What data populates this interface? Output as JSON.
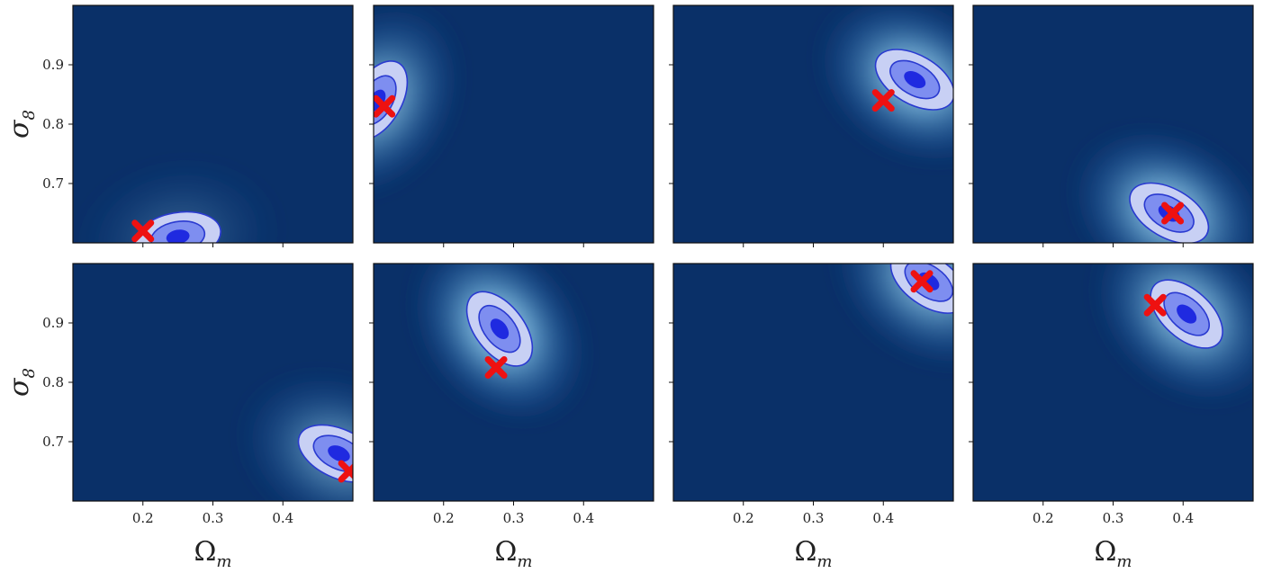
{
  "colors": {
    "background": "#0a3068",
    "contour_outer": "#c8d0f4",
    "contour_mid": "#7e8ef0",
    "contour_inner": "#1f2ae0",
    "contour_line": "#2a3ad0",
    "glow": "#bfe3f6",
    "marker": "#ee1111"
  },
  "chart_data": [
    {
      "type": "heatmap",
      "panel": "row1-col1",
      "xlim": [
        0.1,
        0.5
      ],
      "ylim": [
        0.6,
        1.0
      ],
      "xticks": [],
      "yticks": [
        0.7,
        0.8,
        0.9
      ],
      "xlabel": "",
      "ylabel": "σ8",
      "posterior_peak": {
        "x": 0.25,
        "y": 0.61
      },
      "orientation_deg": -10,
      "glow_strength": 0.25,
      "true_value": {
        "x": 0.2,
        "y": 0.62
      }
    },
    {
      "type": "heatmap",
      "panel": "row1-col2",
      "xlim": [
        0.1,
        0.5
      ],
      "ylim": [
        0.6,
        1.0
      ],
      "xticks": [],
      "yticks": [],
      "xlabel": "",
      "ylabel": "",
      "posterior_peak": {
        "x": 0.105,
        "y": 0.84
      },
      "orientation_deg": -60,
      "glow_strength": 0.8,
      "true_value": {
        "x": 0.115,
        "y": 0.83
      }
    },
    {
      "type": "heatmap",
      "panel": "row1-col3",
      "xlim": [
        0.1,
        0.5
      ],
      "ylim": [
        0.6,
        1.0
      ],
      "xticks": [],
      "yticks": [],
      "xlabel": "",
      "ylabel": "",
      "posterior_peak": {
        "x": 0.445,
        "y": 0.875
      },
      "orientation_deg": 30,
      "glow_strength": 0.95,
      "true_value": {
        "x": 0.4,
        "y": 0.84
      }
    },
    {
      "type": "heatmap",
      "panel": "row1-col4",
      "xlim": [
        0.1,
        0.5
      ],
      "ylim": [
        0.6,
        1.0
      ],
      "xticks": [],
      "yticks": [],
      "xlabel": "",
      "ylabel": "",
      "posterior_peak": {
        "x": 0.38,
        "y": 0.65
      },
      "orientation_deg": 30,
      "glow_strength": 0.95,
      "true_value": {
        "x": 0.385,
        "y": 0.65
      }
    },
    {
      "type": "heatmap",
      "panel": "row2-col1",
      "xlim": [
        0.1,
        0.5
      ],
      "ylim": [
        0.6,
        1.0
      ],
      "xticks": [
        0.2,
        0.3,
        0.4
      ],
      "yticks": [
        0.7,
        0.8,
        0.9
      ],
      "xlabel": "Ωm",
      "ylabel": "σ8",
      "posterior_peak": {
        "x": 0.48,
        "y": 0.68
      },
      "orientation_deg": 25,
      "glow_strength": 0.6,
      "true_value": {
        "x": 0.495,
        "y": 0.65
      }
    },
    {
      "type": "heatmap",
      "panel": "row2-col2",
      "xlim": [
        0.1,
        0.5
      ],
      "ylim": [
        0.6,
        1.0
      ],
      "xticks": [
        0.2,
        0.3,
        0.4
      ],
      "yticks": [],
      "xlabel": "Ωm",
      "ylabel": "",
      "posterior_peak": {
        "x": 0.28,
        "y": 0.89
      },
      "orientation_deg": 52,
      "glow_strength": 1.0,
      "true_value": {
        "x": 0.275,
        "y": 0.825
      }
    },
    {
      "type": "heatmap",
      "panel": "row2-col3",
      "xlim": [
        0.1,
        0.5
      ],
      "ylim": [
        0.6,
        1.0
      ],
      "xticks": [
        0.2,
        0.3,
        0.4
      ],
      "yticks": [],
      "xlabel": "Ωm",
      "ylabel": "",
      "posterior_peak": {
        "x": 0.465,
        "y": 0.97
      },
      "orientation_deg": 35,
      "glow_strength": 0.85,
      "true_value": {
        "x": 0.455,
        "y": 0.97
      }
    },
    {
      "type": "heatmap",
      "panel": "row2-col4",
      "xlim": [
        0.1,
        0.5
      ],
      "ylim": [
        0.6,
        1.0
      ],
      "xticks": [
        0.2,
        0.3,
        0.4
      ],
      "yticks": [],
      "xlabel": "Ωm",
      "ylabel": "",
      "posterior_peak": {
        "x": 0.405,
        "y": 0.915
      },
      "orientation_deg": 42,
      "glow_strength": 0.9,
      "true_value": {
        "x": 0.36,
        "y": 0.93
      }
    }
  ]
}
